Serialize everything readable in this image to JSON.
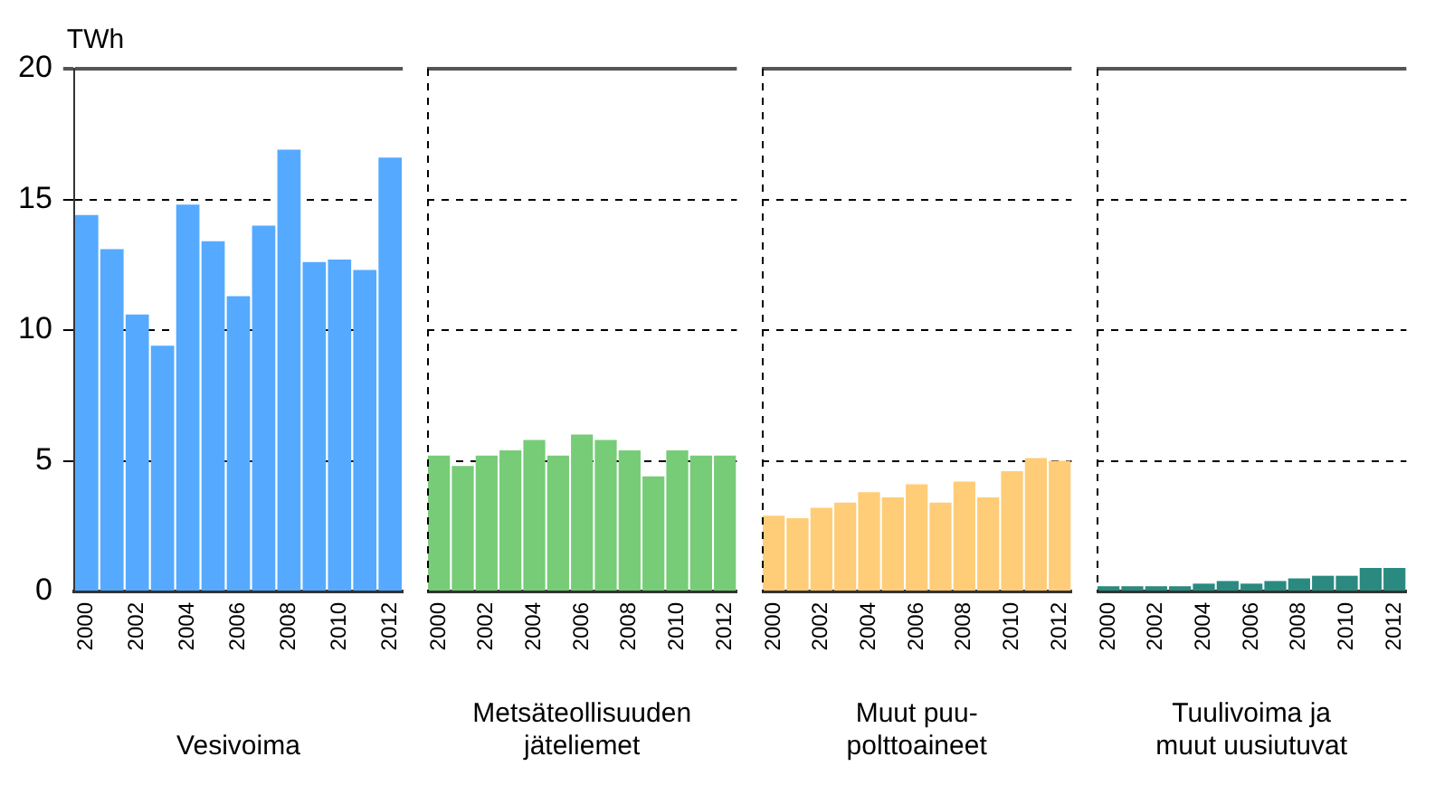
{
  "chart_data": [
    {
      "type": "bar",
      "ylabel": "TWh",
      "xlabel": "Vesivoima",
      "categories": [
        "2000",
        null,
        "2002",
        null,
        "2004",
        null,
        "2006",
        null,
        "2008",
        null,
        "2010",
        null,
        "2012"
      ],
      "values": [
        14.4,
        13.1,
        10.6,
        9.4,
        14.8,
        13.4,
        11.3,
        14.0,
        16.9,
        12.6,
        12.7,
        12.3,
        16.6
      ],
      "color": "#55aaff",
      "ylim": [
        0,
        20
      ],
      "yticks": [
        0,
        5,
        10,
        15,
        20
      ],
      "grid": "y"
    },
    {
      "type": "bar",
      "xlabel": "Metsäteollisuuden\njäteliemet",
      "categories": [
        "2000",
        null,
        "2002",
        null,
        "2004",
        null,
        "2006",
        null,
        "2008",
        null,
        "2010",
        null,
        "2012"
      ],
      "values": [
        5.2,
        4.8,
        5.2,
        5.4,
        5.8,
        5.2,
        6.0,
        5.8,
        5.4,
        4.4,
        5.4,
        5.2,
        5.2
      ],
      "color": "#77cc77",
      "ylim": [
        0,
        20
      ],
      "yticks": [
        0,
        5,
        10,
        15,
        20
      ],
      "grid": "y",
      "tick_labels": "x"
    },
    {
      "type": "bar",
      "xlabel": "Muut puu-\npolttoaineet",
      "categories": [
        "2000",
        null,
        "2002",
        null,
        "2004",
        null,
        "2006",
        null,
        "2008",
        null,
        "2010",
        null,
        "2012"
      ],
      "values": [
        2.9,
        2.8,
        3.2,
        3.4,
        3.8,
        3.6,
        4.1,
        3.4,
        4.2,
        3.6,
        4.6,
        5.1,
        5.0
      ],
      "color": "#ffcc77",
      "ylim": [
        0,
        20
      ],
      "yticks": [
        0,
        5,
        10,
        15,
        20
      ],
      "grid": "y",
      "tick_labels": "x"
    },
    {
      "type": "bar",
      "xlabel": "Tuulivoima ja\nmuut uusiutuvat",
      "categories": [
        "2000",
        null,
        "2002",
        null,
        "2004",
        null,
        "2006",
        null,
        "2008",
        null,
        "2010",
        null,
        "2012"
      ],
      "values": [
        0.2,
        0.2,
        0.2,
        0.2,
        0.3,
        0.4,
        0.3,
        0.4,
        0.5,
        0.6,
        0.6,
        0.9,
        0.9
      ],
      "color": "#2a8a80",
      "ylim": [
        0,
        20
      ],
      "yticks": [
        0,
        5,
        10,
        15,
        20
      ],
      "grid": "y",
      "tick_labels": "x"
    }
  ]
}
